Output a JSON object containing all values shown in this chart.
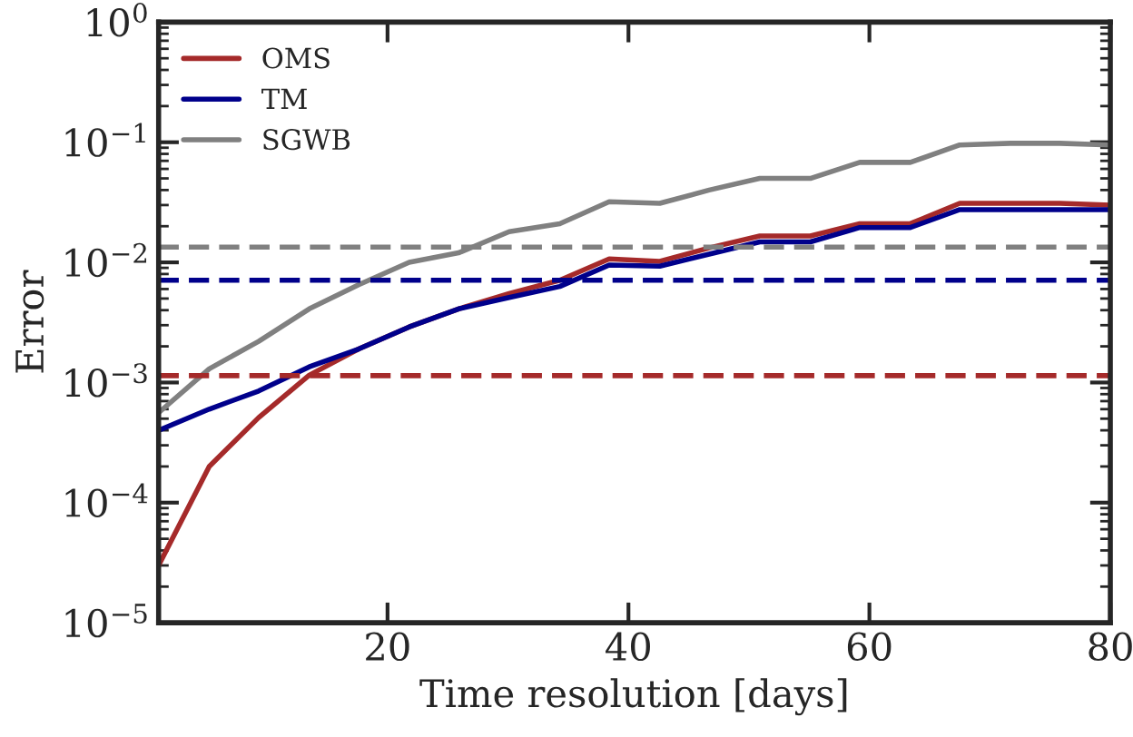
{
  "chart_data": {
    "type": "line",
    "xlabel": "Time resolution [days]",
    "ylabel": "Error",
    "log": "y",
    "xlim": [
      1,
      80
    ],
    "xticks": [
      20,
      40,
      60,
      80
    ],
    "ylim": [
      1e-05,
      1
    ],
    "yticks": [
      {
        "value": 1e-05,
        "label": "10$^{−5}$"
      },
      {
        "value": 0.0001,
        "label": "10$^{−4}$"
      },
      {
        "value": 0.001,
        "label": "10$^{−3}$"
      },
      {
        "value": 0.01,
        "label": "10$^{−2}$"
      },
      {
        "value": 0.1,
        "label": "10$^{−1}$"
      },
      {
        "value": 1,
        "label": "10$^{0}$"
      }
    ],
    "x": [
      1,
      5.2,
      9.3,
      13.5,
      17.6,
      21.8,
      25.9,
      30.1,
      34.3,
      38.4,
      42.6,
      46.7,
      50.9,
      55.1,
      59.2,
      63.4,
      67.5,
      71.7,
      75.8,
      80
    ],
    "series": [
      {
        "name": "OMS",
        "color": "#a52a2a",
        "values": [
          3e-05,
          0.0002,
          0.00051,
          0.00115,
          0.0019,
          0.0029,
          0.0041,
          0.0055,
          0.0071,
          0.0107,
          0.0102,
          0.0132,
          0.0166,
          0.0166,
          0.021,
          0.021,
          0.031,
          0.031,
          0.031,
          0.03
        ]
      },
      {
        "name": "TM",
        "color": "#00008b",
        "values": [
          0.0004,
          0.0006,
          0.00085,
          0.00135,
          0.0019,
          0.0029,
          0.0041,
          0.0051,
          0.0063,
          0.0095,
          0.0093,
          0.0117,
          0.0148,
          0.0148,
          0.0195,
          0.0195,
          0.0275,
          0.0275,
          0.0275,
          0.0275
        ]
      },
      {
        "name": "SGWB",
        "color": "#808080",
        "values": [
          0.00056,
          0.0013,
          0.0022,
          0.0041,
          0.0065,
          0.01,
          0.012,
          0.018,
          0.021,
          0.032,
          0.031,
          0.04,
          0.05,
          0.05,
          0.068,
          0.068,
          0.095,
          0.098,
          0.098,
          0.095
        ]
      }
    ],
    "ref_lines": [
      {
        "axis": "y",
        "value": 0.00114,
        "color": "#a52a2a",
        "line_style": "dashed"
      },
      {
        "axis": "y",
        "value": 0.0071,
        "color": "#00008b",
        "line_style": "dashed"
      },
      {
        "axis": "y",
        "value": 0.0134,
        "color": "#808080",
        "line_style": "dashed"
      }
    ],
    "legend": "top left",
    "grid": false,
    "marker": "none",
    "line_style": "solid"
  }
}
